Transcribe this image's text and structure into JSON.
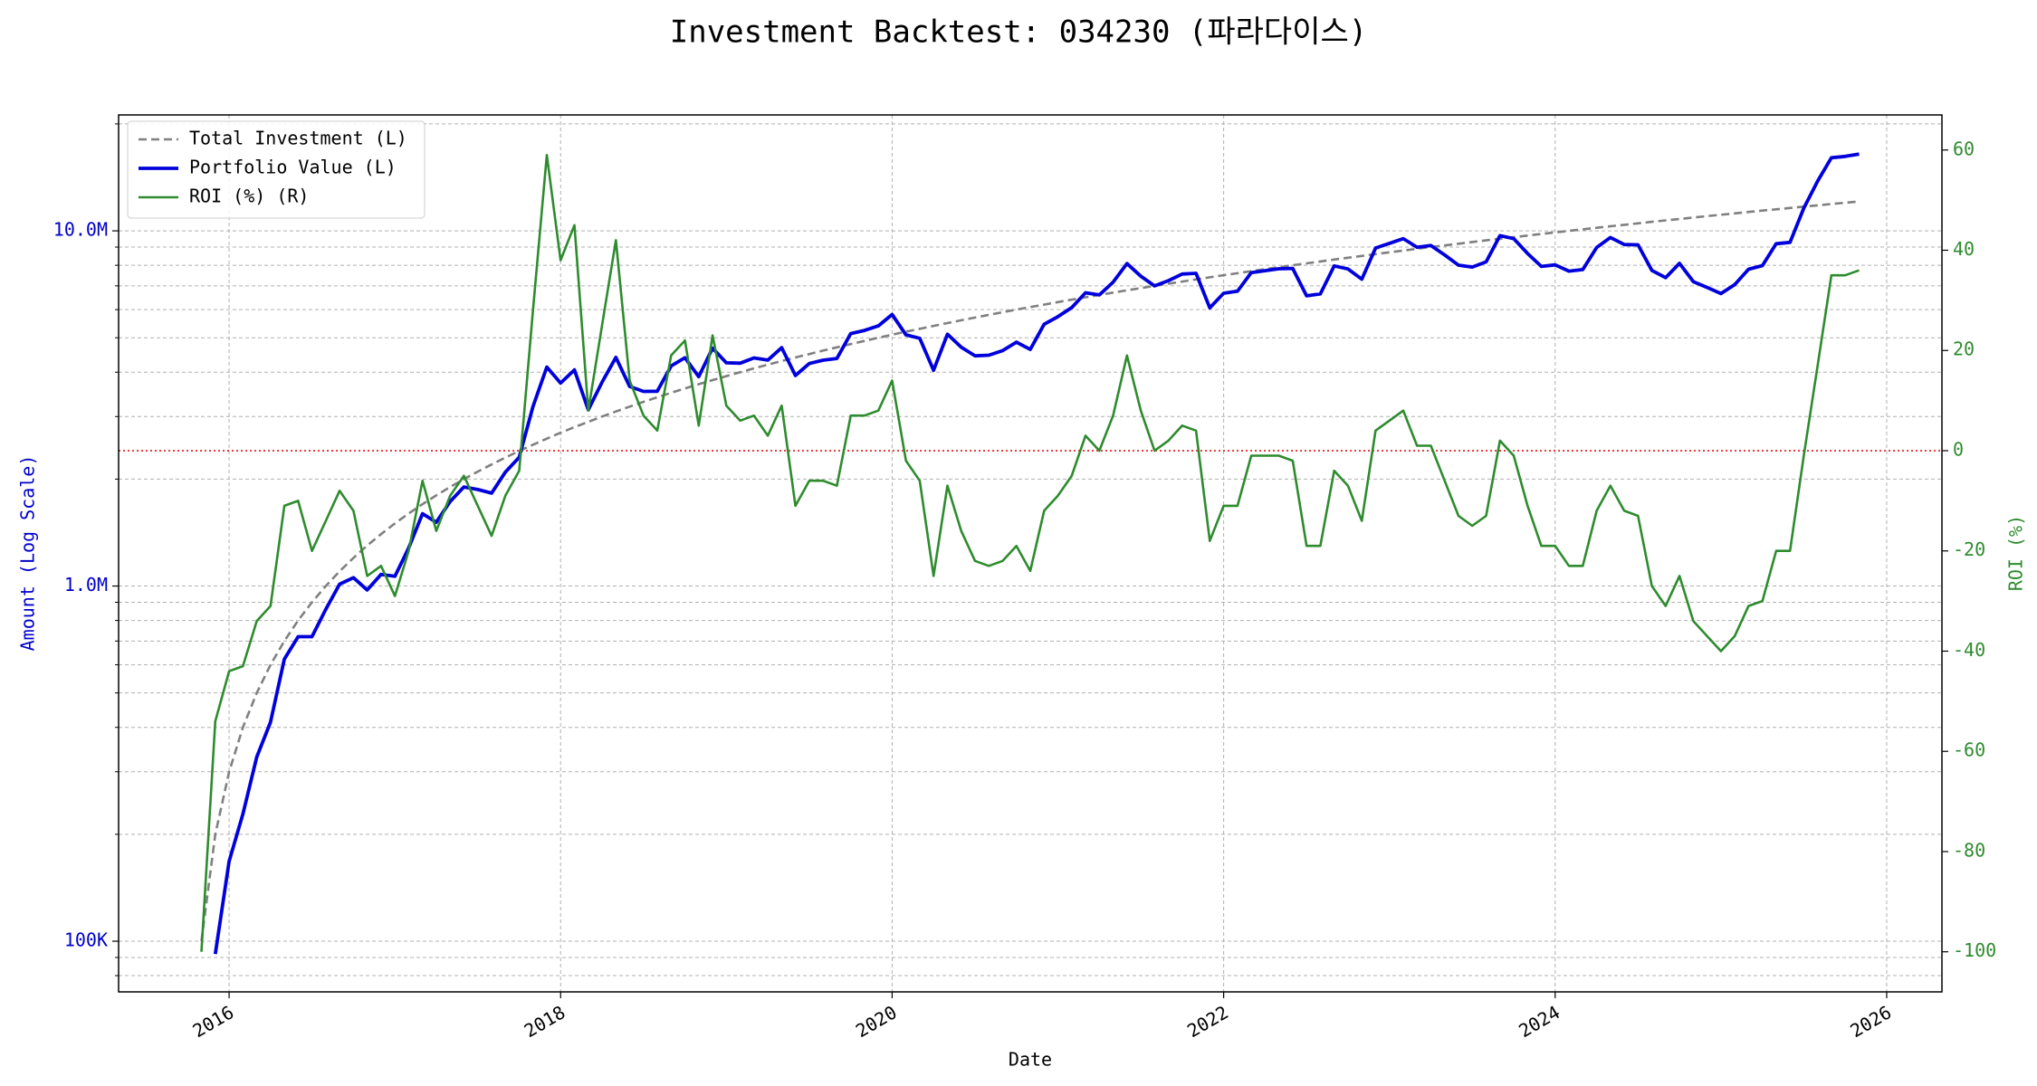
{
  "chart_data": {
    "type": "line",
    "title": "Investment Backtest: 034230 (파라다이스)",
    "x_label": "Date",
    "y_label": "Amount (Log Scale)",
    "y2_label": "ROI (%)",
    "yscale": "log",
    "grid": true,
    "legend": "upper left",
    "y_label_color": "#0000cc",
    "y2_label_color": "#2e8b2e",
    "reference_line": {
      "value": 0,
      "axis": "y2",
      "color": "#dd0000"
    },
    "xlim": [
      "2015-05",
      "2026-05"
    ],
    "xticks": [
      "2016",
      "2018",
      "2020",
      "2022",
      "2024",
      "2026"
    ],
    "ylim": [
      72000,
      21200000
    ],
    "yticks": [
      {
        "value": 100000,
        "label": "100K"
      },
      {
        "value": 1000000,
        "label": "1.0M"
      },
      {
        "value": 10000000,
        "label": "10.0M"
      }
    ],
    "y2lim": [
      -108,
      67
    ],
    "y2ticks": [
      -100,
      -80,
      -60,
      -40,
      -20,
      0,
      20,
      40,
      60
    ],
    "x": [
      "2015-11",
      "2015-12",
      "2016-01",
      "2016-02",
      "2016-03",
      "2016-04",
      "2016-05",
      "2016-06",
      "2016-07",
      "2016-08",
      "2016-09",
      "2016-10",
      "2016-11",
      "2016-12",
      "2017-01",
      "2017-02",
      "2017-03",
      "2017-04",
      "2017-05",
      "2017-06",
      "2017-07",
      "2017-08",
      "2017-09",
      "2017-10",
      "2017-11",
      "2017-12",
      "2018-01",
      "2018-02",
      "2018-03",
      "2018-04",
      "2018-05",
      "2018-06",
      "2018-07",
      "2018-08",
      "2018-09",
      "2018-10",
      "2018-11",
      "2018-12",
      "2019-01",
      "2019-02",
      "2019-03",
      "2019-04",
      "2019-05",
      "2019-06",
      "2019-07",
      "2019-08",
      "2019-09",
      "2019-10",
      "2019-11",
      "2019-12",
      "2020-01",
      "2020-02",
      "2020-03",
      "2020-04",
      "2020-05",
      "2020-06",
      "2020-07",
      "2020-08",
      "2020-09",
      "2020-10",
      "2020-11",
      "2020-12",
      "2021-01",
      "2021-02",
      "2021-03",
      "2021-04",
      "2021-05",
      "2021-06",
      "2021-07",
      "2021-08",
      "2021-09",
      "2021-10",
      "2021-11",
      "2021-12",
      "2022-01",
      "2022-02",
      "2022-03",
      "2022-04",
      "2022-05",
      "2022-06",
      "2022-07",
      "2022-08",
      "2022-09",
      "2022-10",
      "2022-11",
      "2022-12",
      "2023-01",
      "2023-02",
      "2023-03",
      "2023-04",
      "2023-05",
      "2023-06",
      "2023-07",
      "2023-08",
      "2023-09",
      "2023-10",
      "2023-11",
      "2023-12",
      "2024-01",
      "2024-02",
      "2024-03",
      "2024-04",
      "2024-05",
      "2024-06",
      "2024-07",
      "2024-08",
      "2024-09",
      "2024-10",
      "2024-11",
      "2024-12",
      "2025-01",
      "2025-02",
      "2025-03",
      "2025-04",
      "2025-05",
      "2025-06",
      "2025-07",
      "2025-08",
      "2025-09",
      "2025-10",
      "2025-11"
    ],
    "series": [
      {
        "name": "Total Investment (L)",
        "color": "#808080",
        "linestyle": "dashed",
        "values": [
          100000,
          200000,
          300000,
          400000,
          500000,
          600000,
          700000,
          800000,
          900000,
          1000000,
          1100000,
          1200000,
          1300000,
          1400000,
          1500000,
          1600000,
          1700000,
          1800000,
          1900000,
          2000000,
          2100000,
          2200000,
          2300000,
          2400000,
          2500000,
          2600000,
          2700000,
          2800000,
          2900000,
          3000000,
          3100000,
          3200000,
          3300000,
          3400000,
          3500000,
          3600000,
          3700000,
          3800000,
          3900000,
          4000000,
          4100000,
          4200000,
          4300000,
          4400000,
          4500000,
          4600000,
          4700000,
          4800000,
          4900000,
          5000000,
          5100000,
          5200000,
          5300000,
          5400000,
          5500000,
          5600000,
          5700000,
          5800000,
          5900000,
          6000000,
          6100000,
          6200000,
          6300000,
          6400000,
          6500000,
          6600000,
          6700000,
          6800000,
          6900000,
          7000000,
          7100000,
          7200000,
          7300000,
          7400000,
          7500000,
          7600000,
          7700000,
          7800000,
          7900000,
          8000000,
          8100000,
          8200000,
          8300000,
          8400000,
          8500000,
          8600000,
          8700000,
          8800000,
          8900000,
          9000000,
          9100000,
          9200000,
          9300000,
          9400000,
          9500000,
          9600000,
          9700000,
          9800000,
          9900000,
          10000000,
          10100000,
          10200000,
          10300000,
          10400000,
          10500000,
          10600000,
          10700000,
          10800000,
          10900000,
          11000000,
          11100000,
          11200000,
          11300000,
          11400000,
          11500000,
          11600000,
          11700000,
          11800000,
          11900000,
          12000000,
          12100000
        ]
      },
      {
        "name": "Portfolio Value (L)",
        "color": "#0000dd",
        "linestyle": "solid",
        "values": [
          null,
          92000,
          168000,
          228000,
          330000,
          414000,
          623000,
          720000,
          720000,
          860000,
          1012000,
          1056000,
          975000,
          1078000,
          1065000,
          1280000,
          1598000,
          1512000,
          1729000,
          1900000,
          1869000,
          1826000,
          2093000,
          2304000,
          3200000,
          4134000,
          3726000,
          4060000,
          3132000,
          3750000,
          4402000,
          3648000,
          3531000,
          3536000,
          4165000,
          4392000,
          3885000,
          4674000,
          4251000,
          4240000,
          4387000,
          4326000,
          4687000,
          3916000,
          4230000,
          4324000,
          4371000,
          5136000,
          5243000,
          5400000,
          5814000,
          5096000,
          4982000,
          4050000,
          5115000,
          4704000,
          4446000,
          4466000,
          4602000,
          4860000,
          4636000,
          5456000,
          5733000,
          6080000,
          6695000,
          6600000,
          7169000,
          8092000,
          7452000,
          7000000,
          7242000,
          7560000,
          7592000,
          6068000,
          6675000,
          6764000,
          7623000,
          7722000,
          7821000,
          7840000,
          6561000,
          6642000,
          7968000,
          7812000,
          7310000,
          8944000,
          9222000,
          9504000,
          8989000,
          9090000,
          8554000,
          8004000,
          7905000,
          8178000,
          9690000,
          9504000,
          8633000,
          7938000,
          8019000,
          7700000,
          7777000,
          8976000,
          9579000,
          9152000,
          9135000,
          7738000,
          7383000,
          8100000,
          7194000,
          6930000,
          6660000,
          7056000,
          7797000,
          7980000,
          9200000,
          9280000,
          11583000,
          13806000,
          16065000,
          16200000,
          16456000
        ]
      },
      {
        "name": "ROI (%) (R)",
        "color": "#2e8b2e",
        "linestyle": "solid",
        "axis": "y2",
        "values": [
          -100,
          -54,
          -44,
          -43,
          -34,
          -31,
          -11,
          -10,
          -20,
          -14,
          -8,
          -12,
          -25,
          -23,
          -29,
          -20,
          -6,
          -16,
          -9,
          -5,
          -11,
          -17,
          -9,
          -4,
          28,
          59,
          38,
          45,
          8,
          25,
          42,
          14,
          7,
          4,
          19,
          22,
          5,
          23,
          9,
          6,
          7,
          3,
          9,
          -11,
          -6,
          -6,
          -7,
          7,
          7,
          8,
          14,
          -2,
          -6,
          -25,
          -7,
          -16,
          -22,
          -23,
          -22,
          -19,
          -24,
          -12,
          -9,
          -5,
          3,
          0,
          7,
          19,
          8,
          0,
          2,
          5,
          4,
          -18,
          -11,
          -11,
          -1,
          -1,
          -1,
          -2,
          -19,
          -19,
          -4,
          -7,
          -14,
          4,
          6,
          8,
          1,
          1,
          -6,
          -13,
          -15,
          -13,
          2,
          -1,
          -11,
          -19,
          -19,
          -23,
          -23,
          -12,
          -7,
          -12,
          -13,
          -27,
          -31,
          -25,
          -34,
          -37,
          -40,
          -37,
          -31,
          -30,
          -20,
          -20,
          -1,
          17,
          35,
          35,
          36
        ]
      }
    ]
  }
}
